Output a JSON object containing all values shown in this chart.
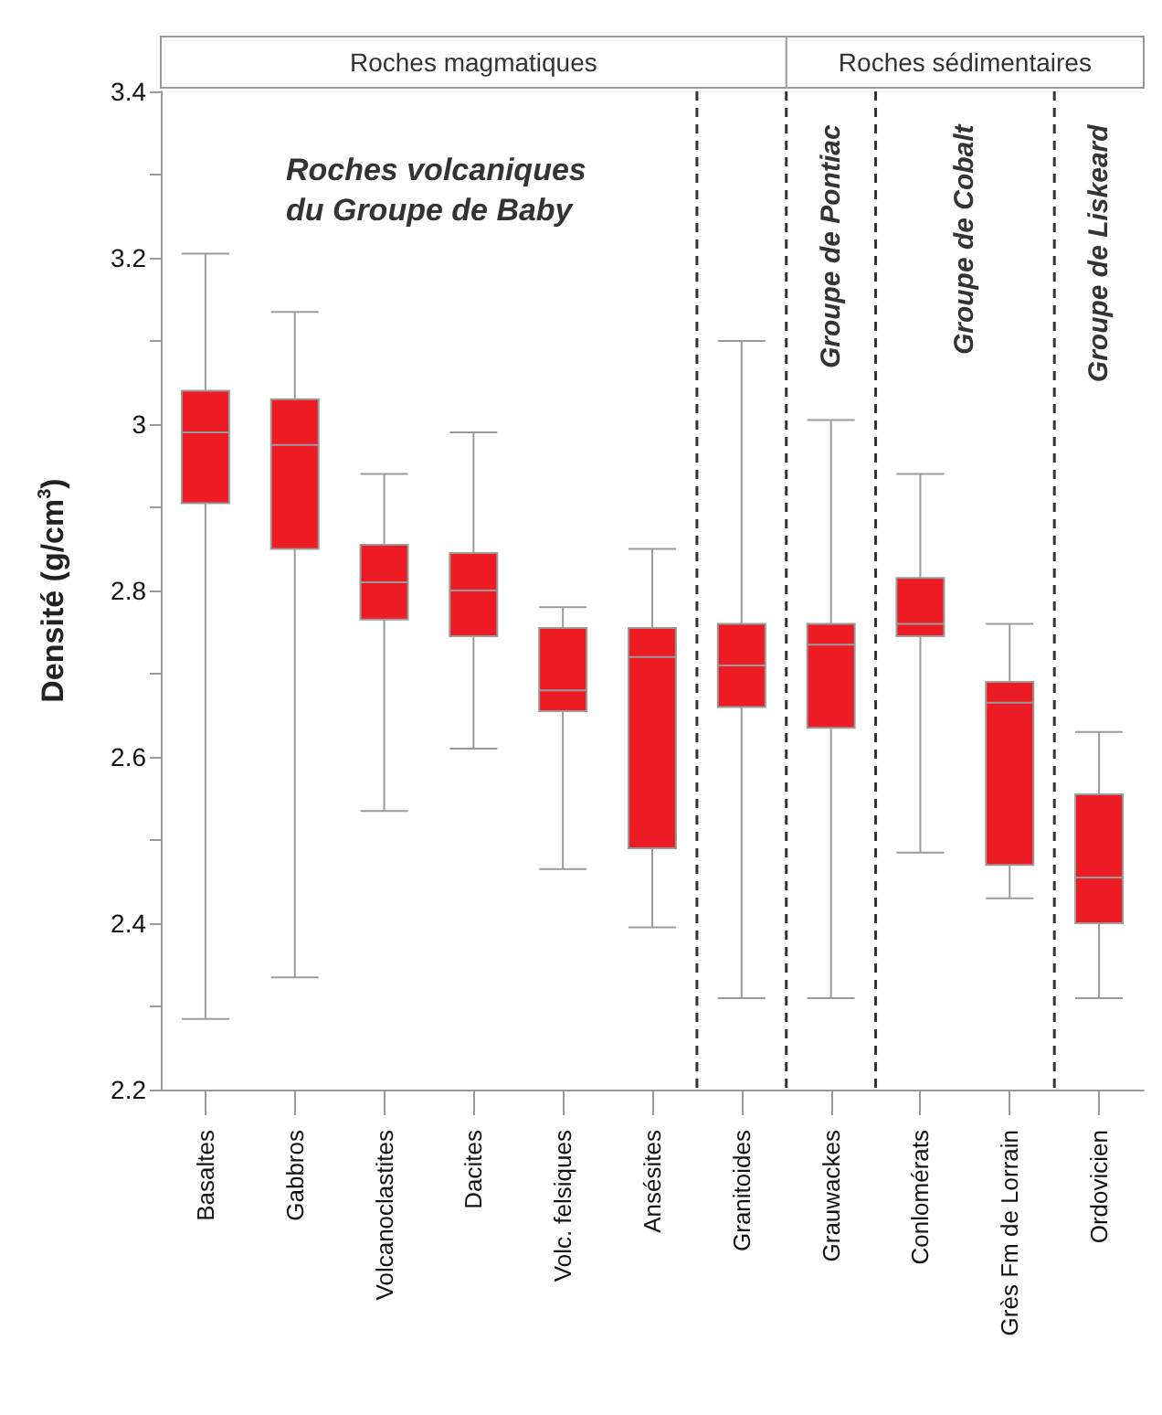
{
  "chart_data": {
    "type": "box",
    "ylabel": "Densité (g/cm$^{3}$)",
    "categories": [
      "Basaltes",
      "Gabbros",
      "Volcanoclastites",
      "Dacites",
      "Volc. felsiques",
      "Ansésites",
      "Granitoides",
      "Grauwackes",
      "Conlomérats",
      "Grès Fm de Lorrain",
      "Ordovicien"
    ],
    "color": "#ed1c24",
    "boxes": [
      {
        "low": 2.285,
        "q1": 2.905,
        "median": 2.99,
        "q3": 3.04,
        "high": 3.205
      },
      {
        "low": 2.335,
        "q1": 2.85,
        "median": 2.975,
        "q3": 3.03,
        "high": 3.135
      },
      {
        "low": 2.535,
        "q1": 2.765,
        "median": 2.81,
        "q3": 2.855,
        "high": 2.94
      },
      {
        "low": 2.61,
        "q1": 2.745,
        "median": 2.8,
        "q3": 2.845,
        "high": 2.99
      },
      {
        "low": 2.465,
        "q1": 2.655,
        "median": 2.68,
        "q3": 2.755,
        "high": 2.78
      },
      {
        "low": 2.395,
        "q1": 2.49,
        "median": 2.72,
        "q3": 2.755,
        "high": 2.85
      },
      {
        "low": 2.31,
        "q1": 2.66,
        "median": 2.71,
        "q3": 2.76,
        "high": 3.1
      },
      {
        "low": 2.31,
        "q1": 2.635,
        "median": 2.735,
        "q3": 2.76,
        "high": 3.005
      },
      {
        "low": 2.485,
        "q1": 2.745,
        "median": 2.76,
        "q3": 2.815,
        "high": 2.94
      },
      {
        "low": 2.43,
        "q1": 2.47,
        "median": 2.665,
        "q3": 2.69,
        "high": 2.76
      },
      {
        "low": 2.31,
        "q1": 2.4,
        "median": 2.455,
        "q3": 2.555,
        "high": 2.63
      }
    ],
    "ylim": [
      2.2,
      3.4
    ],
    "yticks": [
      2.2,
      {
        "value": 2.3,
        "label": null
      },
      2.4,
      {
        "value": 2.5,
        "label": null
      },
      2.6,
      {
        "value": 2.7,
        "label": null
      },
      2.8,
      {
        "value": 2.9,
        "label": null
      },
      3,
      {
        "value": 3.1,
        "label": null
      },
      3.2,
      {
        "value": 3.3,
        "label": null
      },
      3.4
    ],
    "annotations": [
      "Roches magmatiques",
      "Roches sédimentaires",
      "Roches volcaniques\ndu Groupe de Baby",
      "Groupe de Pontiac",
      "Groupe de Cobalt",
      "Groupe de Liskeard"
    ]
  }
}
